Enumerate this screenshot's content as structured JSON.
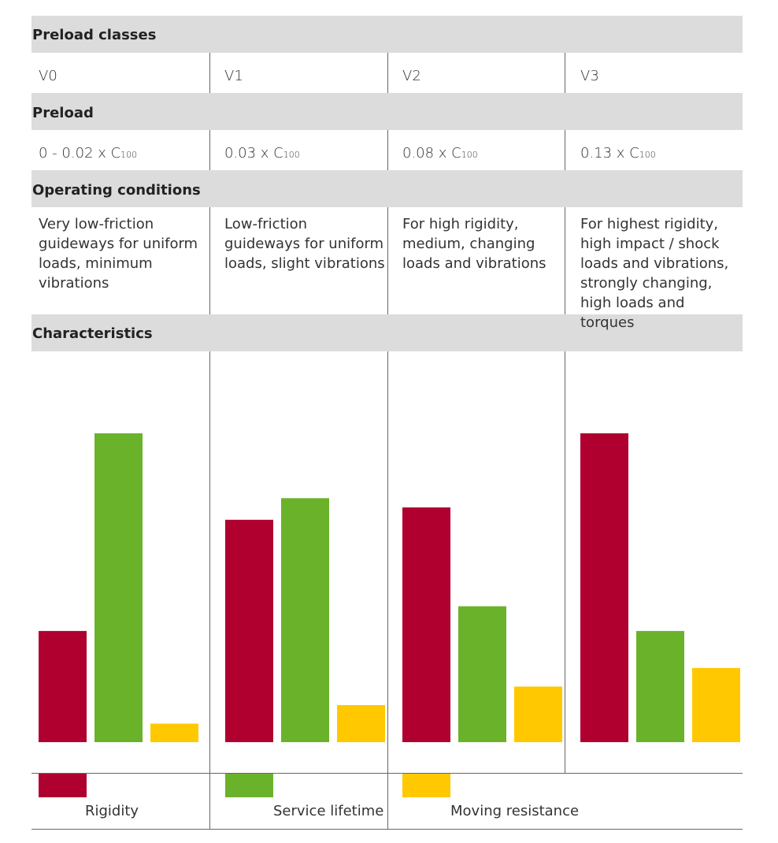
{
  "headers": {
    "preload_classes": "Preload classes",
    "preload": "Preload",
    "operating_conditions": "Operating conditions",
    "characteristics": "Characteristics"
  },
  "classes": [
    "V0",
    "V1",
    "V2",
    "V3"
  ],
  "preload_values": [
    {
      "main": "0 - 0.02 x C",
      "sub": "100"
    },
    {
      "main": "0.03 x C",
      "sub": "100"
    },
    {
      "main": "0.08 x C",
      "sub": "100"
    },
    {
      "main": "0.13 x C",
      "sub": "100"
    }
  ],
  "operating_conditions": [
    [
      "Very low-friction",
      "guideways for uniform",
      "loads, minimum",
      "vibrations"
    ],
    [
      "Low-friction",
      "guideways for uniform",
      "loads, slight vibrations"
    ],
    [
      "For high rigidity,",
      "medium, changing",
      "loads and vibrations"
    ],
    [
      "For highest rigidity,",
      "high impact / shock",
      "loads and vibrations,",
      "strongly changing,",
      "high loads and torques"
    ]
  ],
  "colors": {
    "rigidity": "#b0002f",
    "service_lifetime": "#6bb22b",
    "moving_resistance": "#ffc800",
    "band": "#dcdcdc",
    "line": "#666666"
  },
  "chart_data": {
    "type": "bar",
    "title": "Characteristics",
    "categories": [
      "V0",
      "V1",
      "V2",
      "V3"
    ],
    "series": [
      {
        "name": "Rigidity",
        "values": [
          36,
          72,
          76,
          100
        ]
      },
      {
        "name": "Service lifetime",
        "values": [
          100,
          79,
          44,
          36
        ]
      },
      {
        "name": "Moving resistance",
        "values": [
          6,
          12,
          18,
          24
        ]
      }
    ],
    "ylim": [
      0,
      100
    ],
    "legend": "bottom"
  }
}
